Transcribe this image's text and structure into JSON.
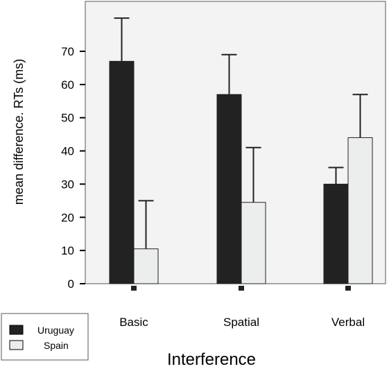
{
  "chart_data": {
    "type": "bar",
    "title": "",
    "xlabel": "Interference",
    "ylabel": "mean difference. RTs (ms)",
    "categories": [
      "Basic",
      "Spatial",
      "Verbal"
    ],
    "series": [
      {
        "name": "Uruguay",
        "color": "#222222",
        "values": [
          67,
          57,
          30
        ],
        "error_upper": [
          80,
          69,
          35
        ]
      },
      {
        "name": "Spain",
        "color": "#eceeed",
        "values": [
          10.5,
          24.5,
          44
        ],
        "error_upper": [
          25,
          41,
          57
        ]
      }
    ],
    "ylim": [
      0,
      84
    ],
    "yticks": [
      "0",
      "10",
      "20",
      "30",
      "40",
      "50",
      "60",
      "70"
    ],
    "legend_position": "bottom-left",
    "background": "#f3f3f3"
  }
}
